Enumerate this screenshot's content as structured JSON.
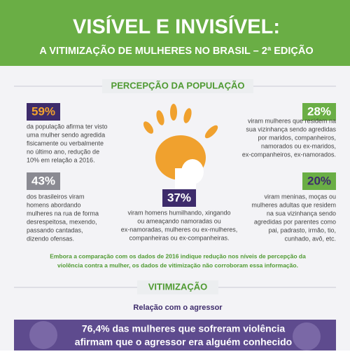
{
  "header": {
    "title": "VISÍVEL E INVISÍVEL:",
    "subtitle": "A VITIMIZAÇÃO DE MULHERES NO BRASIL – 2ª EDIÇÃO"
  },
  "perception": {
    "heading": "PERCEPÇÃO DA POPULAÇÃO",
    "stats": [
      {
        "value": "59%",
        "lines": [
          "da população afirma ter visto",
          "uma mulher sendo agredida",
          "fisicamente ou verbalmente",
          "no último ano, redução de",
          "10% em relação a 2016."
        ]
      },
      {
        "value": "28%",
        "lines": [
          "viram mulheres que residem na",
          "sua vizinhança sendo agredidas",
          "por maridos, companheiros,",
          "namorados ou ex-maridos,",
          "ex-companheiros, ex-namorados."
        ]
      },
      {
        "value": "43%",
        "lines": [
          "dos brasileiros viram",
          "homens abordando",
          "mulheres na rua de forma",
          "desrespeitosa, mexendo,",
          "passando cantadas,",
          "dizendo ofensas."
        ]
      },
      {
        "value": "37%",
        "lines": [
          "viram homens humilhando, xingando",
          "ou ameaçando namoradas ou",
          "ex-namoradas, mulheres ou ex-mulheres,",
          "companheiras ou ex-companheiras."
        ]
      },
      {
        "value": "20%",
        "lines": [
          "viram meninas, moças ou",
          "mulheres adultas que residem",
          "na sua vizinhança sendo",
          "agredidas por parentes como",
          "pai, padrasto, irmão, tio,",
          "cunhado, avô, etc."
        ]
      }
    ],
    "note": [
      "Embora a comparação com os dados de 2016 indique redução nos níveis de percepção da",
      "violência contra a mulher, os dados de vitimização não corroboram essa informação."
    ]
  },
  "victimization": {
    "heading": "VITIMIZAÇÃO",
    "subheading": "Relação com o agressor",
    "banner": [
      "76,4% das mulheres que sofreram violência",
      "afirmam que o agressor era alguém conhecido"
    ]
  }
}
